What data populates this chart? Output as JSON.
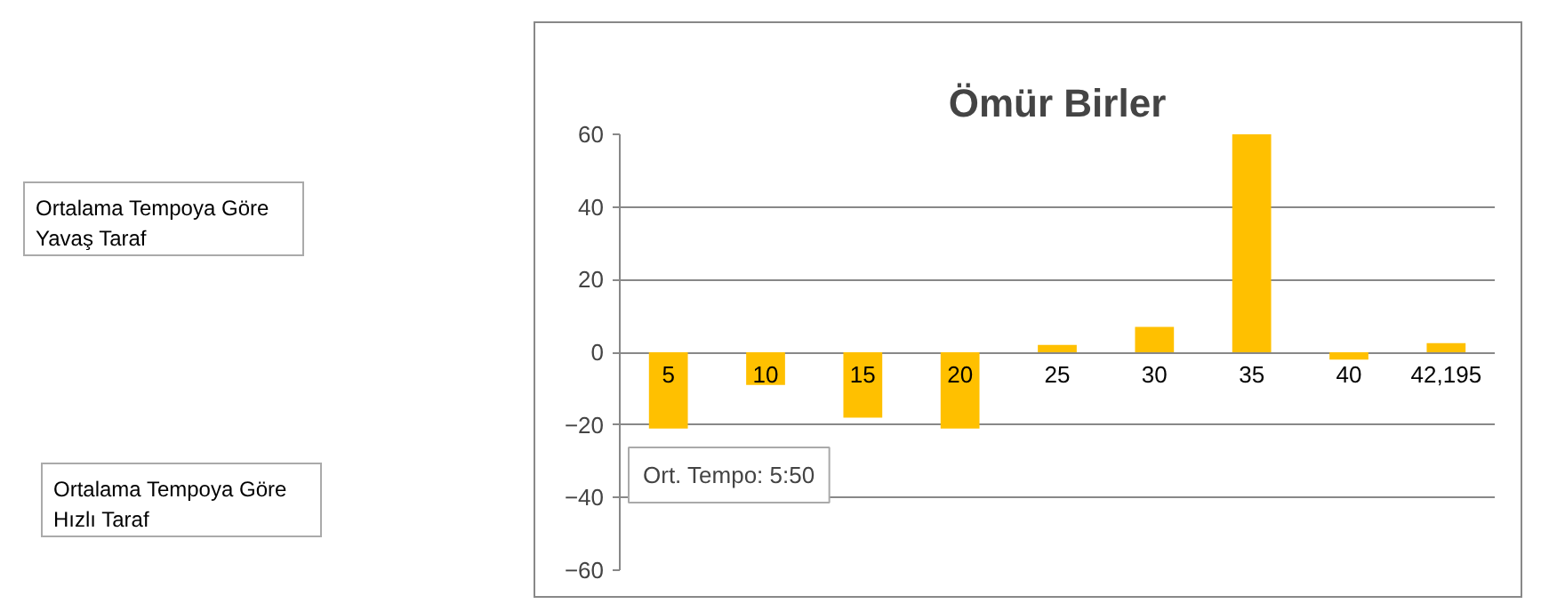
{
  "chart_data": {
    "type": "bar",
    "title": "Ömür Birler",
    "categories": [
      "5",
      "10",
      "15",
      "20",
      "25",
      "30",
      "35",
      "40",
      "42,195"
    ],
    "values": [
      -21,
      -9,
      -18,
      -21,
      2,
      7,
      60,
      -2,
      2.5
    ],
    "color": "#ffc000",
    "ylim": [
      -60,
      60
    ],
    "yticks": [
      -60,
      -40,
      -20,
      0,
      20,
      40,
      60
    ],
    "grid": "y",
    "annotations": [
      "Ortalama Tempoya Göre Yavaş Taraf",
      "Ortalama Tempoya Göre Hızlı Taraf",
      "Ort. Tempo: 5:50"
    ]
  }
}
